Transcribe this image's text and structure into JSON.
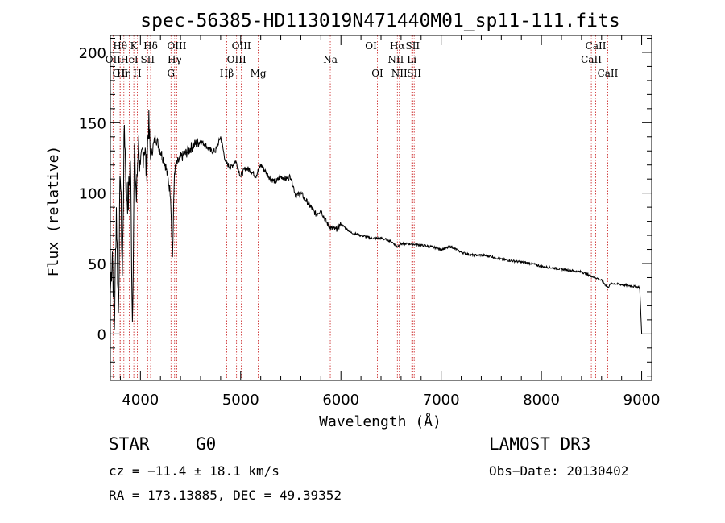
{
  "chart_data": {
    "type": "line",
    "title": "spec-56385-HD113019N471440M01_sp11-111.fits",
    "xlabel": "Wavelength (Å)",
    "ylabel": "Flux (relative)",
    "xlim": [
      3700,
      9100
    ],
    "ylim": [
      -33,
      212
    ],
    "xticks": [
      4000,
      5000,
      6000,
      7000,
      8000,
      9000
    ],
    "yticks": [
      0,
      50,
      100,
      150,
      200
    ],
    "series": [
      {
        "name": "Flux",
        "x": [
          3700,
          3720,
          3740,
          3760,
          3780,
          3800,
          3820,
          3840,
          3860,
          3880,
          3900,
          3920,
          3940,
          3960,
          3980,
          4000,
          4020,
          4040,
          4060,
          4080,
          4100,
          4150,
          4200,
          4250,
          4300,
          4320,
          4340,
          4360,
          4400,
          4450,
          4500,
          4550,
          4600,
          4650,
          4700,
          4750,
          4800,
          4850,
          4900,
          4950,
          5000,
          5050,
          5100,
          5150,
          5200,
          5250,
          5300,
          5350,
          5400,
          5450,
          5500,
          5550,
          5600,
          5650,
          5700,
          5750,
          5800,
          5850,
          5900,
          5950,
          6000,
          6100,
          6200,
          6300,
          6400,
          6500,
          6560,
          6600,
          6700,
          6800,
          6900,
          7000,
          7100,
          7200,
          7300,
          7400,
          7500,
          7600,
          7700,
          7800,
          7900,
          8000,
          8100,
          8200,
          8300,
          8400,
          8500,
          8542,
          8600,
          8662,
          8700,
          8800,
          8900,
          8980,
          9000,
          9005
        ],
        "values": [
          30,
          60,
          5,
          90,
          15,
          120,
          40,
          150,
          100,
          95,
          125,
          10,
          130,
          95,
          140,
          110,
          128,
          135,
          115,
          150,
          125,
          140,
          130,
          120,
          100,
          55,
          115,
          120,
          125,
          128,
          132,
          135,
          137,
          134,
          130,
          130,
          140,
          122,
          118,
          123,
          112,
          118,
          116,
          112,
          120,
          115,
          110,
          108,
          112,
          110,
          112,
          98,
          100,
          95,
          90,
          85,
          88,
          80,
          75,
          74,
          78,
          72,
          70,
          68,
          68,
          66,
          62,
          64,
          64,
          63,
          62,
          60,
          62,
          58,
          56,
          56,
          55,
          53,
          52,
          51,
          50,
          48,
          47,
          46,
          45,
          44,
          41,
          40,
          38,
          33,
          36,
          35,
          34,
          33,
          0,
          0
        ]
      }
    ],
    "spectral_lines": [
      {
        "label": "OII",
        "x": 3727,
        "row": 1
      },
      {
        "label": "Hθ",
        "x": 3798,
        "row": 0
      },
      {
        "label": "OII",
        "x": 3798,
        "row": 2
      },
      {
        "label": "Hη",
        "x": 3835,
        "row": 2
      },
      {
        "label": "HeI",
        "x": 3889,
        "row": 1
      },
      {
        "label": "K",
        "x": 3934,
        "row": 0
      },
      {
        "label": "H",
        "x": 3969,
        "row": 2
      },
      {
        "label": "SII",
        "x": 4072,
        "row": 1
      },
      {
        "label": "Hδ",
        "x": 4102,
        "row": 0
      },
      {
        "label": "G",
        "x": 4305,
        "row": 2
      },
      {
        "label": "Hγ",
        "x": 4341,
        "row": 1
      },
      {
        "label": "OIII",
        "x": 4363,
        "row": 0
      },
      {
        "label": "Hβ",
        "x": 4861,
        "row": 2
      },
      {
        "label": "OIII",
        "x": 4959,
        "row": 1
      },
      {
        "label": "OIII",
        "x": 5007,
        "row": 0
      },
      {
        "label": "Mg",
        "x": 5175,
        "row": 2
      },
      {
        "label": "Na",
        "x": 5894,
        "row": 1
      },
      {
        "label": "OI",
        "x": 6300,
        "row": 0
      },
      {
        "label": "OI",
        "x": 6364,
        "row": 2
      },
      {
        "label": "NII",
        "x": 6548,
        "row": 1
      },
      {
        "label": "Hα",
        "x": 6563,
        "row": 0
      },
      {
        "label": "NII",
        "x": 6583,
        "row": 2
      },
      {
        "label": "Li",
        "x": 6707,
        "row": 1
      },
      {
        "label": "SII",
        "x": 6716,
        "row": 0
      },
      {
        "label": "SII",
        "x": 6731,
        "row": 2
      },
      {
        "label": "CaII",
        "x": 8498,
        "row": 1
      },
      {
        "label": "CaII",
        "x": 8542,
        "row": 0
      },
      {
        "label": "CaII",
        "x": 8662,
        "row": 2
      }
    ]
  },
  "info": {
    "class": "STAR",
    "subclass": "G0",
    "survey": "LAMOST DR3",
    "cz": "cz = −11.4 ± 18.1 km/s",
    "obs_date": "Obs−Date: 20130402",
    "coords": "RA = 173.13885, DEC =  49.39352"
  },
  "colors": {
    "axis": "#000000",
    "line": "#000000",
    "marker": "#c81a1a",
    "background": "#ffffff"
  }
}
